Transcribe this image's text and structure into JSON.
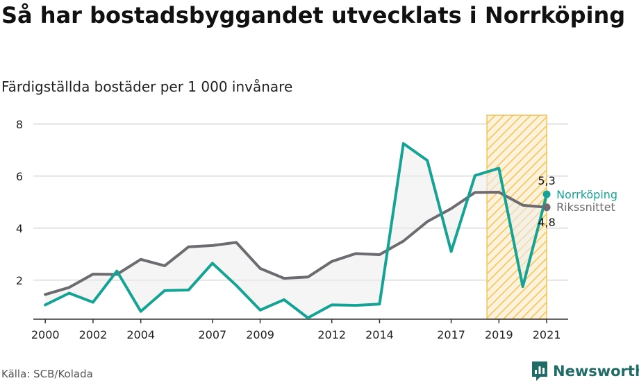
{
  "header": {
    "title": "Så har bostadsbyggandet utvecklats i Norrköping",
    "subtitle": "Färdigställda bostäder per 1 000 invånare"
  },
  "footer": {
    "source": "Källa: SCB/Kolada",
    "brand": "Newsworthy"
  },
  "icons": {
    "brand": "newsworthy-logo-icon"
  },
  "colors": {
    "norrkoping": "#14a394",
    "riket": "#6e6b70",
    "highlight": "#f5c253",
    "grid": "#d9d9d9",
    "brand": "#1f6b66"
  },
  "chart_data": {
    "type": "line",
    "title": "Så har bostadsbyggandet utvecklats i Norrköping",
    "subtitle": "Färdigställda bostäder per 1 000 invånare",
    "x": [
      2000,
      2001,
      2002,
      2003,
      2004,
      2005,
      2006,
      2007,
      2008,
      2009,
      2010,
      2011,
      2012,
      2013,
      2014,
      2015,
      2016,
      2017,
      2018,
      2019,
      2020,
      2021
    ],
    "x_ticks": [
      2000,
      2002,
      2004,
      2007,
      2009,
      2012,
      2014,
      2017,
      2019,
      2021
    ],
    "ylim": [
      0.5,
      8.5
    ],
    "y_ticks": [
      2,
      4,
      6,
      8
    ],
    "grid": true,
    "highlight_range": [
      2018.5,
      2021
    ],
    "series": [
      {
        "name": "Norrköping",
        "values": [
          1.05,
          1.5,
          1.15,
          2.35,
          0.8,
          1.6,
          1.62,
          2.65,
          1.8,
          0.85,
          1.25,
          0.55,
          1.05,
          1.03,
          1.08,
          7.25,
          6.6,
          3.1,
          6.02,
          6.3,
          1.75,
          5.3
        ],
        "end_label": "5,3"
      },
      {
        "name": "Rikssnittet",
        "values": [
          1.45,
          1.72,
          2.23,
          2.22,
          2.8,
          2.55,
          3.28,
          3.33,
          3.45,
          2.45,
          2.07,
          2.12,
          2.72,
          3.02,
          2.98,
          3.5,
          4.25,
          4.75,
          5.37,
          5.38,
          4.88,
          4.8
        ],
        "end_label": "4,8"
      }
    ]
  }
}
